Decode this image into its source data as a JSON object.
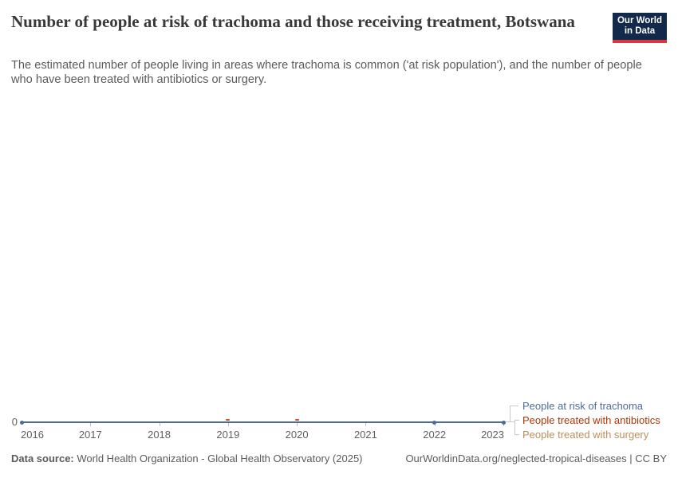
{
  "header": {
    "title": "Number of people at risk of trachoma and those receiving treatment, Botswana",
    "subtitle": "The estimated number of people living in areas where trachoma is common ('at risk population'), and the number of people who have been treated with antibiotics or surgery.",
    "logo": {
      "line1": "Our World",
      "line2": "in Data",
      "bg_color": "#12294b",
      "bar_color": "#d7383f"
    }
  },
  "chart_data": {
    "type": "line",
    "x": [
      2016,
      2017,
      2018,
      2019,
      2020,
      2021,
      2022,
      2023
    ],
    "series": [
      {
        "name": "People at risk of trachoma",
        "color": "#4C6A9C",
        "values": [
          0,
          0,
          0,
          0,
          0,
          0,
          0,
          0
        ],
        "visible_marker_years": [
          2016,
          2022,
          2023
        ]
      },
      {
        "name": "People treated with antibiotics",
        "color": "#B13507",
        "values": [
          0,
          0,
          0,
          0,
          0,
          0,
          0,
          0
        ],
        "visible_marker_years": [
          2019,
          2020
        ]
      },
      {
        "name": "People treated with surgery",
        "color": "#BC8E5A",
        "values": [
          0,
          0,
          0,
          0,
          0,
          0,
          0,
          0
        ],
        "visible_marker_years": []
      }
    ],
    "y_axis": {
      "ticks": [
        "0"
      ],
      "min": 0
    },
    "grid": "off",
    "legend_position": "right"
  },
  "footer": {
    "source_label": "Data source:",
    "source_text": " World Health Organization - Global Health Observatory (2025)",
    "link_text": "OurWorldinData.org/neglected-tropical-diseases | CC BY"
  }
}
